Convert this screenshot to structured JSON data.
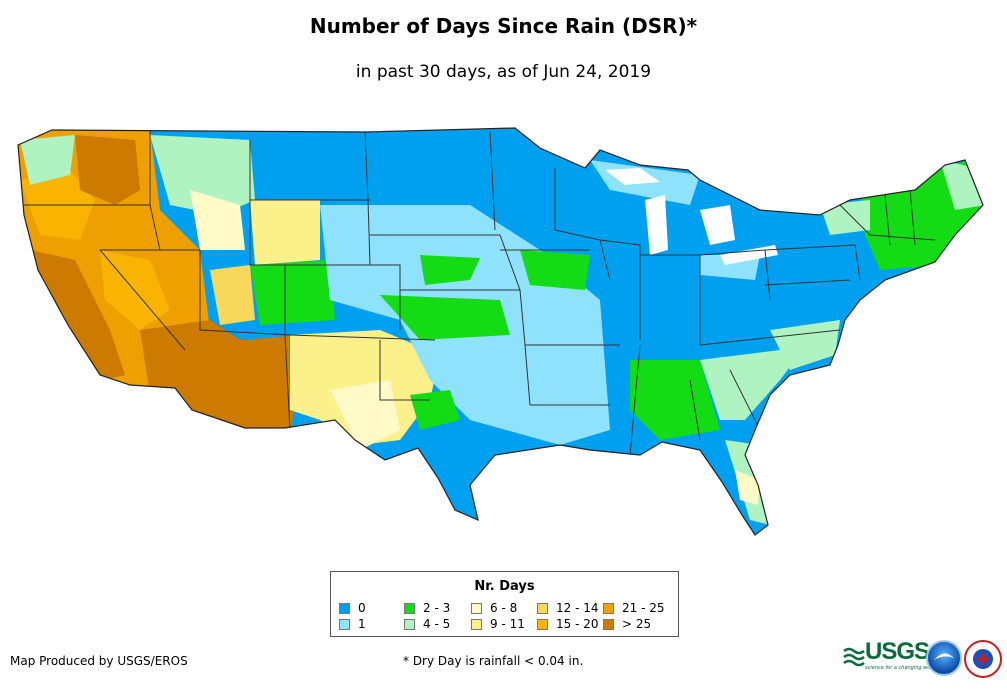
{
  "title": "Number of Days Since Rain (DSR)*",
  "subtitle": "in past 30 days, as of Jun 24, 2019",
  "legend": {
    "title": "Nr. Days",
    "items": [
      {
        "label": "0",
        "color": "#00a0f0"
      },
      {
        "label": "1",
        "color": "#8ee2fb"
      },
      {
        "label": "2 - 3",
        "color": "#14dc14"
      },
      {
        "label": "4 - 5",
        "color": "#aef3c0"
      },
      {
        "label": "6 - 8",
        "color": "#fffac8"
      },
      {
        "label": "9 - 11",
        "color": "#fbf08a"
      },
      {
        "label": "12 - 14",
        "color": "#f8d85a"
      },
      {
        "label": "15 - 20",
        "color": "#f8b400"
      },
      {
        "label": "21 - 25",
        "color": "#eda000"
      },
      {
        "label": "> 25",
        "color": "#cc7a00"
      }
    ]
  },
  "footer": {
    "credit": "Map Produced by USGS/EROS",
    "note": "* Dry Day is rainfall < 0.04 in."
  },
  "logos": {
    "usgs_text": "USGS",
    "usgs_tagline": "science for a changing world",
    "noaa_icon": "noaa-logo-icon",
    "nws_icon": "nws-logo-icon"
  },
  "map": {
    "ocean_color": "#ffffff",
    "border_color": "#333333"
  }
}
